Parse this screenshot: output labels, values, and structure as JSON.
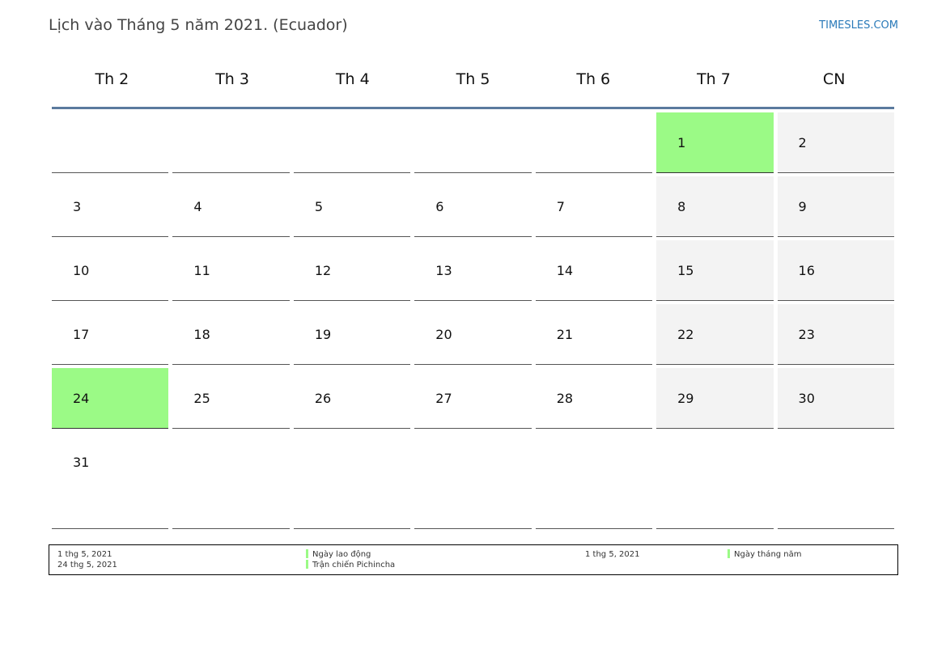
{
  "header": {
    "title": "Lịch vào Tháng 5 năm 2021. (Ecuador)",
    "brand": "TIMESLES.COM"
  },
  "colors": {
    "holiday": "#9bfa86",
    "weekend": "#f3f3f3",
    "header_rule": "#5b7a9e",
    "brand": "#2a7ab9"
  },
  "calendar": {
    "weekdays": [
      "Th 2",
      "Th 3",
      "Th 4",
      "Th 5",
      "Th 6",
      "Th 7",
      "CN"
    ],
    "weeks": [
      [
        null,
        null,
        null,
        null,
        null,
        {
          "d": "1",
          "type": "holiday"
        },
        {
          "d": "2",
          "type": "weekend"
        }
      ],
      [
        {
          "d": "3"
        },
        {
          "d": "4"
        },
        {
          "d": "5"
        },
        {
          "d": "6"
        },
        {
          "d": "7"
        },
        {
          "d": "8",
          "type": "weekend"
        },
        {
          "d": "9",
          "type": "weekend"
        }
      ],
      [
        {
          "d": "10"
        },
        {
          "d": "11"
        },
        {
          "d": "12"
        },
        {
          "d": "13"
        },
        {
          "d": "14"
        },
        {
          "d": "15",
          "type": "weekend"
        },
        {
          "d": "16",
          "type": "weekend"
        }
      ],
      [
        {
          "d": "17"
        },
        {
          "d": "18"
        },
        {
          "d": "19"
        },
        {
          "d": "20"
        },
        {
          "d": "21"
        },
        {
          "d": "22",
          "type": "weekend"
        },
        {
          "d": "23",
          "type": "weekend"
        }
      ],
      [
        {
          "d": "24",
          "type": "holiday"
        },
        {
          "d": "25"
        },
        {
          "d": "26"
        },
        {
          "d": "27"
        },
        {
          "d": "28"
        },
        {
          "d": "29",
          "type": "weekend"
        },
        {
          "d": "30",
          "type": "weekend"
        }
      ],
      [
        {
          "d": "31"
        },
        null,
        null,
        null,
        null,
        null,
        null
      ]
    ]
  },
  "legend": {
    "entries": [
      {
        "date": "1 thg 5, 2021",
        "name": "Ngày lao động"
      },
      {
        "date": "24 thg 5, 2021",
        "name": "Trận chiến Pichincha"
      },
      {
        "date": "1 thg 5, 2021",
        "name": "Ngày tháng năm"
      }
    ]
  }
}
